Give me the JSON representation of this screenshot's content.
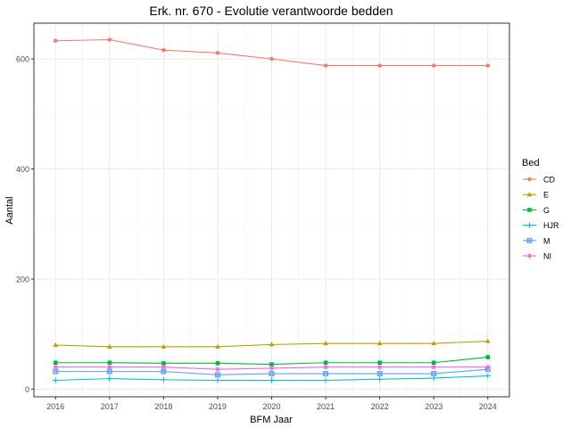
{
  "chart_data": {
    "type": "line",
    "title": "Erk. nr. 670 - Evolutie verantwoorde bedden",
    "xlabel": "BFM Jaar",
    "ylabel": "Aantal",
    "x": [
      2016,
      2017,
      2018,
      2019,
      2020,
      2021,
      2022,
      2023,
      2024
    ],
    "xlim": [
      2015.6,
      2024.4
    ],
    "ylim": [
      -14,
      665
    ],
    "yticks": [
      0,
      200,
      400,
      600
    ],
    "grid": true,
    "legend": {
      "title": "Bed",
      "placement": "right"
    },
    "series": [
      {
        "name": "CD",
        "color": "#F8766D",
        "marker": "circle",
        "values": [
          633,
          635,
          616,
          611,
          600,
          588,
          588,
          588,
          588
        ]
      },
      {
        "name": "E",
        "color": "#B79F00",
        "marker": "triangle",
        "values": [
          80,
          77,
          77,
          77,
          81,
          83,
          83,
          83,
          87
        ]
      },
      {
        "name": "G",
        "color": "#00BA38",
        "marker": "square",
        "values": [
          48,
          48,
          47,
          47,
          45,
          48,
          48,
          48,
          58
        ]
      },
      {
        "name": "HJR",
        "color": "#00BFC4",
        "marker": "plus",
        "values": [
          16,
          19,
          17,
          16,
          16,
          16,
          18,
          20,
          24
        ]
      },
      {
        "name": "M",
        "color": "#619CFF",
        "marker": "square-cross",
        "values": [
          32,
          32,
          32,
          26,
          28,
          28,
          28,
          28,
          36
        ]
      },
      {
        "name": "NI",
        "color": "#F564E3",
        "marker": "star",
        "values": [
          40,
          40,
          40,
          36,
          38,
          40,
          40,
          40,
          40
        ]
      }
    ]
  }
}
